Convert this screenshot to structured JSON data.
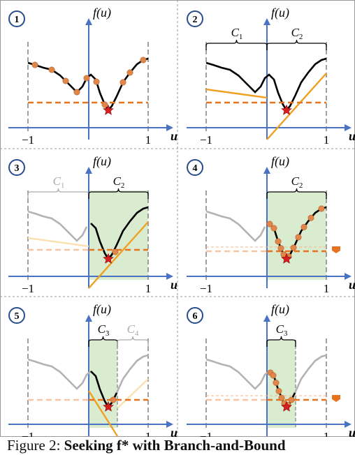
{
  "figure": {
    "caption_prefix": "Figure 2:",
    "caption_bold": "Seeking f* with Branch-and-Bound",
    "axis_y_label": "f(u)",
    "axis_x_label": "u",
    "tick_neg": "−1",
    "tick_pos": "1",
    "colors": {
      "axis": "#4a72c4",
      "curve": "#000000",
      "curve_faded": "#b3b3b3",
      "bound_orange": "#f0a020",
      "bound_faded": "#fbe1b2",
      "dashed_bound": "#e8731e",
      "sample_point": "#e0864a",
      "star": "#d71f1f",
      "region_fill": "#d9ecd0",
      "frame": "#999999"
    },
    "panels": [
      {
        "id": "1",
        "label": "1",
        "regions": []
      },
      {
        "id": "2",
        "label": "2",
        "regions": [
          "C1",
          "C2"
        ]
      },
      {
        "id": "3",
        "label": "3",
        "regions": [
          "C1",
          "C2"
        ]
      },
      {
        "id": "4",
        "label": "4",
        "regions": [
          "C2"
        ]
      },
      {
        "id": "5",
        "label": "5",
        "regions": [
          "C3",
          "C4"
        ]
      },
      {
        "id": "6",
        "label": "6",
        "regions": [
          "C3"
        ]
      }
    ],
    "region_labels": {
      "C1": "C1",
      "C2": "C2",
      "C3": "C3",
      "C4": "C4"
    }
  }
}
